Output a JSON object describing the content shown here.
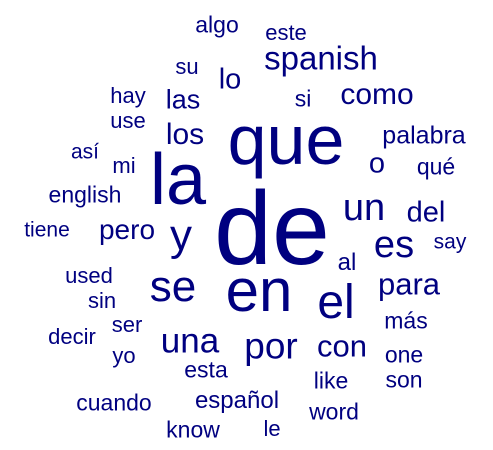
{
  "cloud": {
    "color": "#000080",
    "words": [
      {
        "text": "de",
        "weight": 1.0
      },
      {
        "text": "que",
        "weight": 0.9
      },
      {
        "text": "la",
        "weight": 0.82
      },
      {
        "text": "en",
        "weight": 0.78
      },
      {
        "text": "el",
        "weight": 0.66
      },
      {
        "text": "se",
        "weight": 0.55
      },
      {
        "text": "y",
        "weight": 0.55
      },
      {
        "text": "es",
        "weight": 0.45
      },
      {
        "text": "un",
        "weight": 0.42
      },
      {
        "text": "una",
        "weight": 0.42
      },
      {
        "text": "por",
        "weight": 0.42
      },
      {
        "text": "con",
        "weight": 0.38
      },
      {
        "text": "spanish",
        "weight": 0.36
      },
      {
        "text": "como",
        "weight": 0.34
      },
      {
        "text": "para",
        "weight": 0.34
      },
      {
        "text": "los",
        "weight": 0.32
      },
      {
        "text": "del",
        "weight": 0.3
      },
      {
        "text": "o",
        "weight": 0.3
      },
      {
        "text": "las",
        "weight": 0.28
      },
      {
        "text": "lo",
        "weight": 0.28
      },
      {
        "text": "pero",
        "weight": 0.28
      },
      {
        "text": "palabra",
        "weight": 0.25
      },
      {
        "text": "al",
        "weight": 0.24
      },
      {
        "text": "más",
        "weight": 0.22
      },
      {
        "text": "esta",
        "weight": 0.22
      },
      {
        "text": "español",
        "weight": 0.22
      },
      {
        "text": "qué",
        "weight": 0.22
      },
      {
        "text": "like",
        "weight": 0.2
      },
      {
        "text": "word",
        "weight": 0.2
      },
      {
        "text": "one",
        "weight": 0.2
      },
      {
        "text": "son",
        "weight": 0.2
      },
      {
        "text": "si",
        "weight": 0.2
      },
      {
        "text": "english",
        "weight": 0.2
      },
      {
        "text": "cuando",
        "weight": 0.2
      },
      {
        "text": "know",
        "weight": 0.2
      },
      {
        "text": "algo",
        "weight": 0.2
      },
      {
        "text": "este",
        "weight": 0.18
      },
      {
        "text": "su",
        "weight": 0.18
      },
      {
        "text": "hay",
        "weight": 0.18
      },
      {
        "text": "use",
        "weight": 0.18
      },
      {
        "text": "mi",
        "weight": 0.18
      },
      {
        "text": "así",
        "weight": 0.17
      },
      {
        "text": "tiene",
        "weight": 0.17
      },
      {
        "text": "say",
        "weight": 0.17
      },
      {
        "text": "used",
        "weight": 0.18
      },
      {
        "text": "sin",
        "weight": 0.18
      },
      {
        "text": "decir",
        "weight": 0.18
      },
      {
        "text": "ser",
        "weight": 0.18
      },
      {
        "text": "yo",
        "weight": 0.18
      },
      {
        "text": "le",
        "weight": 0.18
      }
    ]
  }
}
